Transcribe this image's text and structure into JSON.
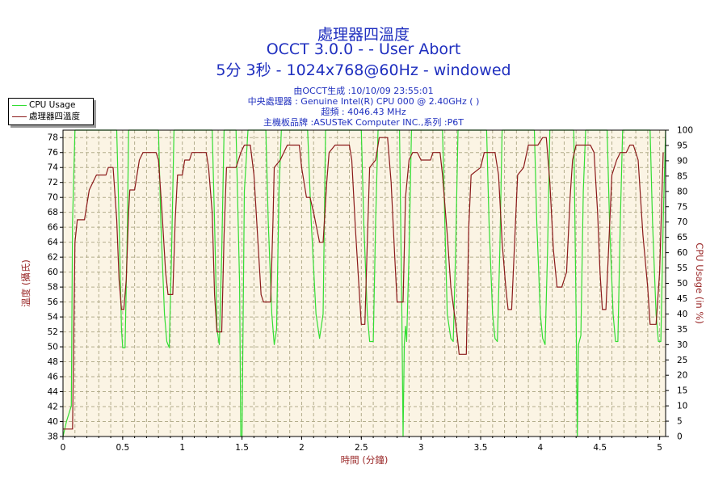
{
  "header": {
    "title": "處理器四溫度",
    "subtitle": "OCCT 3.0.0 -  - User Abort",
    "run_info": "5分 3秒 - 1024x768@60Hz - windowed",
    "generated": "由OCCT生成 :10/10/09 23:55:01",
    "cpu": "中央處理器 : Genuine Intel(R) CPU 000 @ 2.40GHz (  )",
    "freq": "超頻 : 4046.43 MHz",
    "board": "主機板品牌 :ASUSTeK Computer INC.,系列 :P6T"
  },
  "colors": {
    "plot_bg": "#fbf4e4",
    "grid": "#b3ad8c",
    "temp_line": "#8b1a1a",
    "usage_line": "#33dd33",
    "axis_label": "#9b2a2a",
    "tick_text": "#000000",
    "title": "#1f2fbf"
  },
  "chart_data": {
    "type": "line",
    "title": "處理器四溫度",
    "xlabel": "時間 (分鐘)",
    "ylabel": "溫度 (攝氏)",
    "y2label": "CPU Usage (in %)",
    "xlim": [
      0,
      5.05
    ],
    "ylim": [
      38,
      79
    ],
    "y2lim": [
      0,
      100
    ],
    "grid": true,
    "legend_position": "top-left",
    "x_ticks": [
      "0",
      "0.5",
      "1",
      "1.5",
      "2",
      "2.5",
      "3",
      "3.5",
      "4",
      "4.5",
      "5"
    ],
    "y_ticks": [
      "38",
      "40",
      "42",
      "44",
      "46",
      "48",
      "50",
      "52",
      "54",
      "56",
      "58",
      "60",
      "62",
      "64",
      "66",
      "68",
      "70",
      "72",
      "74",
      "76",
      "78"
    ],
    "y2_ticks": [
      "0",
      "5",
      "10",
      "15",
      "20",
      "25",
      "30",
      "35",
      "40",
      "45",
      "50",
      "55",
      "60",
      "65",
      "70",
      "75",
      "80",
      "85",
      "90",
      "95",
      "100"
    ],
    "series": [
      {
        "name": "CPU Usage",
        "axis": "right",
        "points": [
          [
            0,
            0
          ],
          [
            0.03,
            5
          ],
          [
            0.07,
            10
          ],
          [
            0.08,
            70
          ],
          [
            0.1,
            100
          ],
          [
            0.45,
            100
          ],
          [
            0.47,
            70
          ],
          [
            0.49,
            35
          ],
          [
            0.5,
            29
          ],
          [
            0.52,
            29
          ],
          [
            0.54,
            70
          ],
          [
            0.55,
            100
          ],
          [
            0.8,
            100
          ],
          [
            0.82,
            70
          ],
          [
            0.85,
            40
          ],
          [
            0.87,
            31
          ],
          [
            0.89,
            29
          ],
          [
            0.91,
            60
          ],
          [
            0.93,
            100
          ],
          [
            1.25,
            100
          ],
          [
            1.27,
            70
          ],
          [
            1.29,
            35
          ],
          [
            1.31,
            30
          ],
          [
            1.33,
            60
          ],
          [
            1.35,
            100
          ],
          [
            1.45,
            100
          ],
          [
            1.48,
            50
          ],
          [
            1.49,
            0
          ],
          [
            1.5,
            0
          ],
          [
            1.52,
            80
          ],
          [
            1.55,
            100
          ],
          [
            1.7,
            100
          ],
          [
            1.72,
            70
          ],
          [
            1.75,
            40
          ],
          [
            1.77,
            30
          ],
          [
            1.79,
            35
          ],
          [
            1.81,
            80
          ],
          [
            1.83,
            100
          ],
          [
            2.05,
            100
          ],
          [
            2.08,
            70
          ],
          [
            2.12,
            40
          ],
          [
            2.15,
            32
          ],
          [
            2.18,
            40
          ],
          [
            2.2,
            100
          ],
          [
            2.5,
            100
          ],
          [
            2.52,
            70
          ],
          [
            2.55,
            40
          ],
          [
            2.57,
            31
          ],
          [
            2.6,
            31
          ],
          [
            2.62,
            70
          ],
          [
            2.64,
            100
          ],
          [
            2.82,
            100
          ],
          [
            2.84,
            40
          ],
          [
            2.85,
            0
          ],
          [
            2.86,
            30
          ],
          [
            2.87,
            36
          ],
          [
            2.88,
            31
          ],
          [
            2.9,
            60
          ],
          [
            2.92,
            100
          ],
          [
            3.18,
            100
          ],
          [
            3.2,
            70
          ],
          [
            3.22,
            40
          ],
          [
            3.25,
            32
          ],
          [
            3.27,
            31
          ],
          [
            3.29,
            60
          ],
          [
            3.31,
            100
          ],
          [
            3.55,
            100
          ],
          [
            3.57,
            70
          ],
          [
            3.6,
            40
          ],
          [
            3.62,
            32
          ],
          [
            3.64,
            31
          ],
          [
            3.66,
            60
          ],
          [
            3.68,
            100
          ],
          [
            3.95,
            100
          ],
          [
            3.97,
            70
          ],
          [
            4.0,
            40
          ],
          [
            4.02,
            32
          ],
          [
            4.04,
            30
          ],
          [
            4.06,
            60
          ],
          [
            4.08,
            100
          ],
          [
            4.28,
            100
          ],
          [
            4.3,
            40
          ],
          [
            4.31,
            0
          ],
          [
            4.32,
            30
          ],
          [
            4.34,
            33
          ],
          [
            4.36,
            80
          ],
          [
            4.38,
            100
          ],
          [
            4.56,
            100
          ],
          [
            4.58,
            70
          ],
          [
            4.61,
            40
          ],
          [
            4.63,
            31
          ],
          [
            4.65,
            31
          ],
          [
            4.67,
            70
          ],
          [
            4.69,
            100
          ],
          [
            4.92,
            100
          ],
          [
            4.94,
            70
          ],
          [
            4.97,
            40
          ],
          [
            4.99,
            31
          ],
          [
            5.01,
            31
          ],
          [
            5.03,
            70
          ],
          [
            5.05,
            100
          ]
        ]
      },
      {
        "name": "處理器四溫度",
        "axis": "left",
        "points": [
          [
            0,
            39
          ],
          [
            0.08,
            39
          ],
          [
            0.1,
            64
          ],
          [
            0.12,
            67
          ],
          [
            0.18,
            67
          ],
          [
            0.2,
            69
          ],
          [
            0.22,
            71
          ],
          [
            0.25,
            72
          ],
          [
            0.28,
            73
          ],
          [
            0.36,
            73
          ],
          [
            0.38,
            74
          ],
          [
            0.42,
            74
          ],
          [
            0.45,
            67
          ],
          [
            0.47,
            59
          ],
          [
            0.49,
            55
          ],
          [
            0.51,
            55
          ],
          [
            0.53,
            59
          ],
          [
            0.55,
            68
          ],
          [
            0.56,
            71
          ],
          [
            0.6,
            71
          ],
          [
            0.62,
            73
          ],
          [
            0.64,
            75
          ],
          [
            0.67,
            76
          ],
          [
            0.78,
            76
          ],
          [
            0.8,
            75
          ],
          [
            0.83,
            68
          ],
          [
            0.86,
            60
          ],
          [
            0.88,
            57
          ],
          [
            0.92,
            57
          ],
          [
            0.94,
            67
          ],
          [
            0.96,
            73
          ],
          [
            1.0,
            73
          ],
          [
            1.02,
            75
          ],
          [
            1.06,
            75
          ],
          [
            1.08,
            76
          ],
          [
            1.2,
            76
          ],
          [
            1.22,
            74
          ],
          [
            1.25,
            68
          ],
          [
            1.27,
            57
          ],
          [
            1.29,
            52
          ],
          [
            1.33,
            52
          ],
          [
            1.35,
            65
          ],
          [
            1.37,
            74
          ],
          [
            1.45,
            74
          ],
          [
            1.47,
            75
          ],
          [
            1.49,
            76
          ],
          [
            1.52,
            77
          ],
          [
            1.57,
            77
          ],
          [
            1.6,
            73
          ],
          [
            1.63,
            65
          ],
          [
            1.66,
            57
          ],
          [
            1.68,
            56
          ],
          [
            1.74,
            56
          ],
          [
            1.76,
            67
          ],
          [
            1.77,
            74
          ],
          [
            1.82,
            75
          ],
          [
            1.85,
            76
          ],
          [
            1.88,
            77
          ],
          [
            1.98,
            77
          ],
          [
            2.0,
            74
          ],
          [
            2.04,
            70
          ],
          [
            2.07,
            70
          ],
          [
            2.1,
            68
          ],
          [
            2.15,
            64
          ],
          [
            2.18,
            64
          ],
          [
            2.21,
            72
          ],
          [
            2.23,
            76
          ],
          [
            2.28,
            77
          ],
          [
            2.4,
            77
          ],
          [
            2.42,
            75
          ],
          [
            2.45,
            66
          ],
          [
            2.48,
            58
          ],
          [
            2.5,
            53
          ],
          [
            2.53,
            53
          ],
          [
            2.55,
            64
          ],
          [
            2.57,
            74
          ],
          [
            2.62,
            75
          ],
          [
            2.65,
            78
          ],
          [
            2.72,
            78
          ],
          [
            2.75,
            72
          ],
          [
            2.78,
            62
          ],
          [
            2.8,
            56
          ],
          [
            2.85,
            56
          ],
          [
            2.87,
            70
          ],
          [
            2.9,
            75
          ],
          [
            2.93,
            76
          ],
          [
            2.97,
            76
          ],
          [
            3.0,
            75
          ],
          [
            3.08,
            75
          ],
          [
            3.1,
            76
          ],
          [
            3.16,
            76
          ],
          [
            3.18,
            73
          ],
          [
            3.22,
            65
          ],
          [
            3.25,
            58
          ],
          [
            3.3,
            52
          ],
          [
            3.32,
            49
          ],
          [
            3.38,
            49
          ],
          [
            3.4,
            66
          ],
          [
            3.42,
            73
          ],
          [
            3.5,
            74
          ],
          [
            3.53,
            76
          ],
          [
            3.62,
            76
          ],
          [
            3.65,
            73
          ],
          [
            3.68,
            64
          ],
          [
            3.71,
            58
          ],
          [
            3.73,
            55
          ],
          [
            3.76,
            55
          ],
          [
            3.79,
            66
          ],
          [
            3.81,
            73
          ],
          [
            3.86,
            74
          ],
          [
            3.9,
            77
          ],
          [
            3.98,
            77
          ],
          [
            4.02,
            78
          ],
          [
            4.05,
            78
          ],
          [
            4.08,
            72
          ],
          [
            4.11,
            63
          ],
          [
            4.14,
            58
          ],
          [
            4.18,
            58
          ],
          [
            4.22,
            60
          ],
          [
            4.25,
            70
          ],
          [
            4.27,
            75
          ],
          [
            4.3,
            77
          ],
          [
            4.42,
            77
          ],
          [
            4.45,
            76
          ],
          [
            4.48,
            68
          ],
          [
            4.5,
            60
          ],
          [
            4.52,
            55
          ],
          [
            4.55,
            55
          ],
          [
            4.58,
            66
          ],
          [
            4.6,
            73
          ],
          [
            4.64,
            75
          ],
          [
            4.67,
            76
          ],
          [
            4.72,
            76
          ],
          [
            4.75,
            77
          ],
          [
            4.78,
            77
          ],
          [
            4.82,
            75
          ],
          [
            4.86,
            65
          ],
          [
            4.9,
            58
          ],
          [
            4.92,
            53
          ],
          [
            4.97,
            53
          ],
          [
            5.0,
            60
          ],
          [
            5.03,
            76
          ]
        ]
      }
    ]
  }
}
